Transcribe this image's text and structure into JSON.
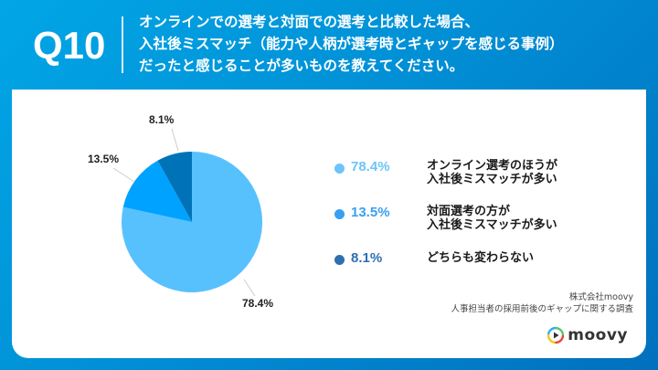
{
  "header": {
    "question_number": "Q10",
    "question_lines": [
      "オンラインでの選考と対面での選考と比較した場合、",
      "入社後ミスマッチ（能力や人柄が選考時とギャップを感じる事例）",
      "だったと感じることが多いものを教えてください。"
    ]
  },
  "chart_data": {
    "type": "pie",
    "title": "オンラインでの選考と対面での選考と比較した場合、入社後ミスマッチ（能力や人柄が選考時とギャップを感じる事例）だったと感じることが多いものを教えてください。",
    "categories": [
      "オンライン選考のほうが入社後ミスマッチが多い",
      "対面選考の方が入社後ミスマッチが多い",
      "どちらも変わらない"
    ],
    "values": [
      78.4,
      13.5,
      8.1
    ],
    "unit": "%",
    "data_labels": [
      "78.4%",
      "13.5%",
      "8.1%"
    ],
    "colors": [
      "#57c1fe",
      "#00a2ff",
      "#0073b8"
    ],
    "start_angle": "12 o'clock",
    "direction": "clockwise",
    "legend_position": "right"
  },
  "legend": {
    "items": [
      {
        "pct": "78.4%",
        "line1": "オンライン選考のほうが",
        "line2": "入社後ミスマッチが多い",
        "color": "#6cc4fb"
      },
      {
        "pct": "13.5%",
        "line1": "対面選考の方が",
        "line2": "入社後ミスマッチが多い",
        "color": "#3a9ff0"
      },
      {
        "pct": "8.1%",
        "line1": "どちらも変わらない",
        "line2": "",
        "color": "#2f6fb0"
      }
    ]
  },
  "source": {
    "company": "株式会社moovy",
    "survey": "人事担当者の採用前後のギャップに関する調査"
  },
  "logo": {
    "text": "moovy",
    "icon": "play-circle-icon"
  }
}
